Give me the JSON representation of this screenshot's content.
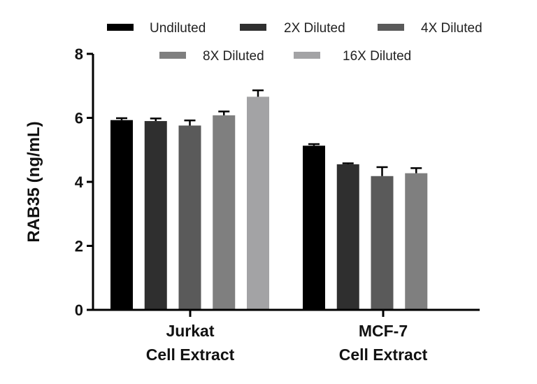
{
  "chart_data": {
    "type": "bar",
    "title": "",
    "xlabel": "",
    "ylabel": "RAB35 (ng/mL)",
    "ylim": [
      0,
      8
    ],
    "yticks": [
      0,
      2,
      4,
      6,
      8
    ],
    "grid": false,
    "legend_position": "top",
    "categories": [
      {
        "line1": "Jurkat",
        "line2": "Cell Extract"
      },
      {
        "line1": "MCF-7",
        "line2": "Cell Extract"
      }
    ],
    "series": [
      {
        "name": "Undiluted",
        "color": "#000000",
        "values": [
          5.93,
          5.13
        ],
        "errors": [
          0.06,
          0.05
        ]
      },
      {
        "name": "2X Diluted",
        "color": "#2f2f2f",
        "values": [
          5.9,
          4.55
        ],
        "errors": [
          0.08,
          0.03
        ]
      },
      {
        "name": "4X Diluted",
        "color": "#5a5a5a",
        "values": [
          5.76,
          4.18
        ],
        "errors": [
          0.16,
          0.28
        ]
      },
      {
        "name": "8X Diluted",
        "color": "#7f7f7f",
        "values": [
          6.08,
          4.27
        ],
        "errors": [
          0.12,
          0.16
        ]
      },
      {
        "name": "16X Diluted",
        "color": "#a3a3a5",
        "values": [
          6.66,
          null
        ],
        "errors": [
          0.2,
          null
        ]
      }
    ]
  }
}
